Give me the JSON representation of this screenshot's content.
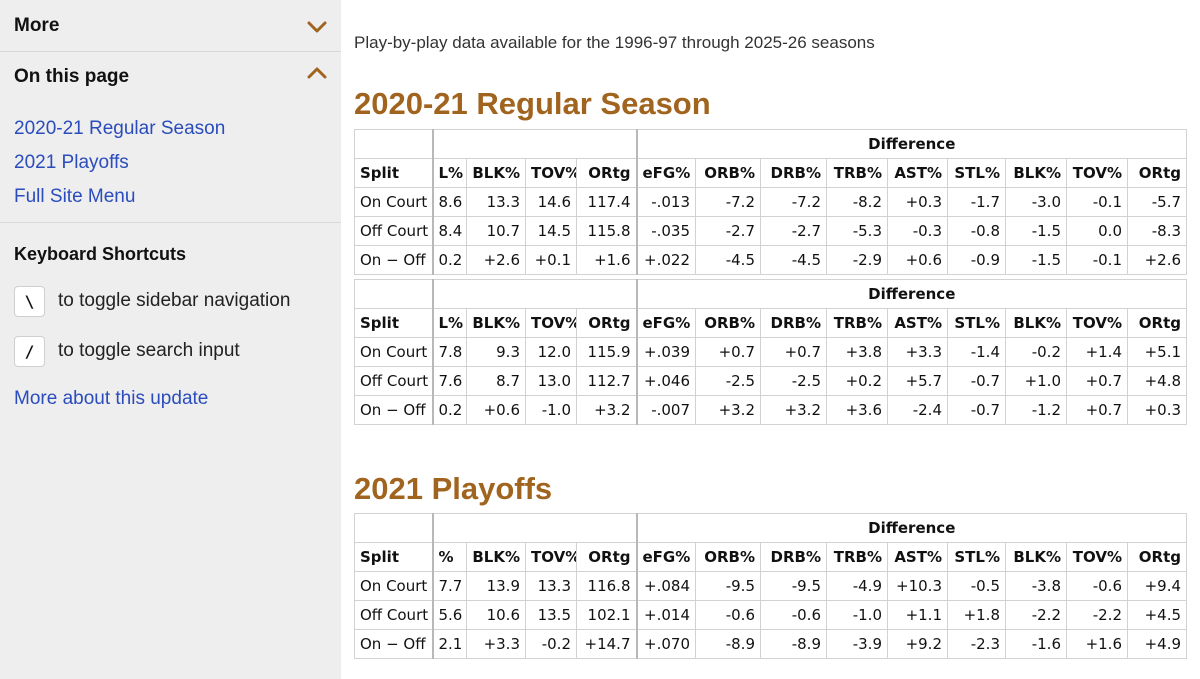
{
  "sidebar": {
    "more_label": "More",
    "on_this_page_label": "On this page",
    "links": [
      "2020-21 Regular Season",
      "2021 Playoffs",
      "Full Site Menu"
    ],
    "keyboard_title": "Keyboard Shortcuts",
    "shortcuts": [
      {
        "key": "\\",
        "desc": "to toggle sidebar navigation"
      },
      {
        "key": "/",
        "desc": "to toggle search input"
      }
    ],
    "more_about": "More about this update"
  },
  "intro": "Play-by-play data available for the 1996-97 through 2025-26 seasons",
  "sections": [
    {
      "title": "2020-21 Regular Season",
      "tables": [
        {
          "group_label": "Difference",
          "columns": [
            "Split",
            "L%",
            "BLK%",
            "TOV%",
            "ORtg",
            "eFG%",
            "ORB%",
            "DRB%",
            "TRB%",
            "AST%",
            "STL%",
            "BLK%",
            "TOV%",
            "ORtg"
          ],
          "rows": [
            [
              "On Court",
              "8.6",
              "13.3",
              "14.6",
              "117.4",
              "-.013",
              "-7.2",
              "-7.2",
              "-8.2",
              "+0.3",
              "-1.7",
              "-3.0",
              "-0.1",
              "-5.7"
            ],
            [
              "Off Court",
              "8.4",
              "10.7",
              "14.5",
              "115.8",
              "-.035",
              "-2.7",
              "-2.7",
              "-5.3",
              "-0.3",
              "-0.8",
              "-1.5",
              "0.0",
              "-8.3"
            ],
            [
              "On − Off",
              "0.2",
              "+2.6",
              "+0.1",
              "+1.6",
              "+.022",
              "-4.5",
              "-4.5",
              "-2.9",
              "+0.6",
              "-0.9",
              "-1.5",
              "-0.1",
              "+2.6"
            ]
          ]
        },
        {
          "group_label": "Difference",
          "columns": [
            "Split",
            "L%",
            "BLK%",
            "TOV%",
            "ORtg",
            "eFG%",
            "ORB%",
            "DRB%",
            "TRB%",
            "AST%",
            "STL%",
            "BLK%",
            "TOV%",
            "ORtg"
          ],
          "rows": [
            [
              "On Court",
              "7.8",
              "9.3",
              "12.0",
              "115.9",
              "+.039",
              "+0.7",
              "+0.7",
              "+3.8",
              "+3.3",
              "-1.4",
              "-0.2",
              "+1.4",
              "+5.1"
            ],
            [
              "Off Court",
              "7.6",
              "8.7",
              "13.0",
              "112.7",
              "+.046",
              "-2.5",
              "-2.5",
              "+0.2",
              "+5.7",
              "-0.7",
              "+1.0",
              "+0.7",
              "+4.8"
            ],
            [
              "On − Off",
              "0.2",
              "+0.6",
              "-1.0",
              "+3.2",
              "-.007",
              "+3.2",
              "+3.2",
              "+3.6",
              "-2.4",
              "-0.7",
              "-1.2",
              "+0.7",
              "+0.3"
            ]
          ]
        }
      ]
    },
    {
      "title": "2021 Playoffs",
      "tables": [
        {
          "group_label": "Difference",
          "columns": [
            "Split",
            "%",
            "BLK%",
            "TOV%",
            "ORtg",
            "eFG%",
            "ORB%",
            "DRB%",
            "TRB%",
            "AST%",
            "STL%",
            "BLK%",
            "TOV%",
            "ORtg"
          ],
          "rows": [
            [
              "On Court",
              "7.7",
              "13.9",
              "13.3",
              "116.8",
              "+.084",
              "-9.5",
              "-9.5",
              "-4.9",
              "+10.3",
              "-0.5",
              "-3.8",
              "-0.6",
              "+9.4"
            ],
            [
              "Off Court",
              "5.6",
              "10.6",
              "13.5",
              "102.1",
              "+.014",
              "-0.6",
              "-0.6",
              "-1.0",
              "+1.1",
              "+1.8",
              "-2.2",
              "-2.2",
              "+4.5"
            ],
            [
              "On − Off",
              "2.1",
              "+3.3",
              "-0.2",
              "+14.7",
              "+.070",
              "-8.9",
              "-8.9",
              "-3.9",
              "+9.2",
              "-2.3",
              "-1.6",
              "+1.6",
              "+4.9"
            ]
          ]
        }
      ]
    }
  ],
  "colors": {
    "heading": "#a1641f",
    "link": "#2a4cbc",
    "sidebar_bg": "#eeeeee"
  }
}
